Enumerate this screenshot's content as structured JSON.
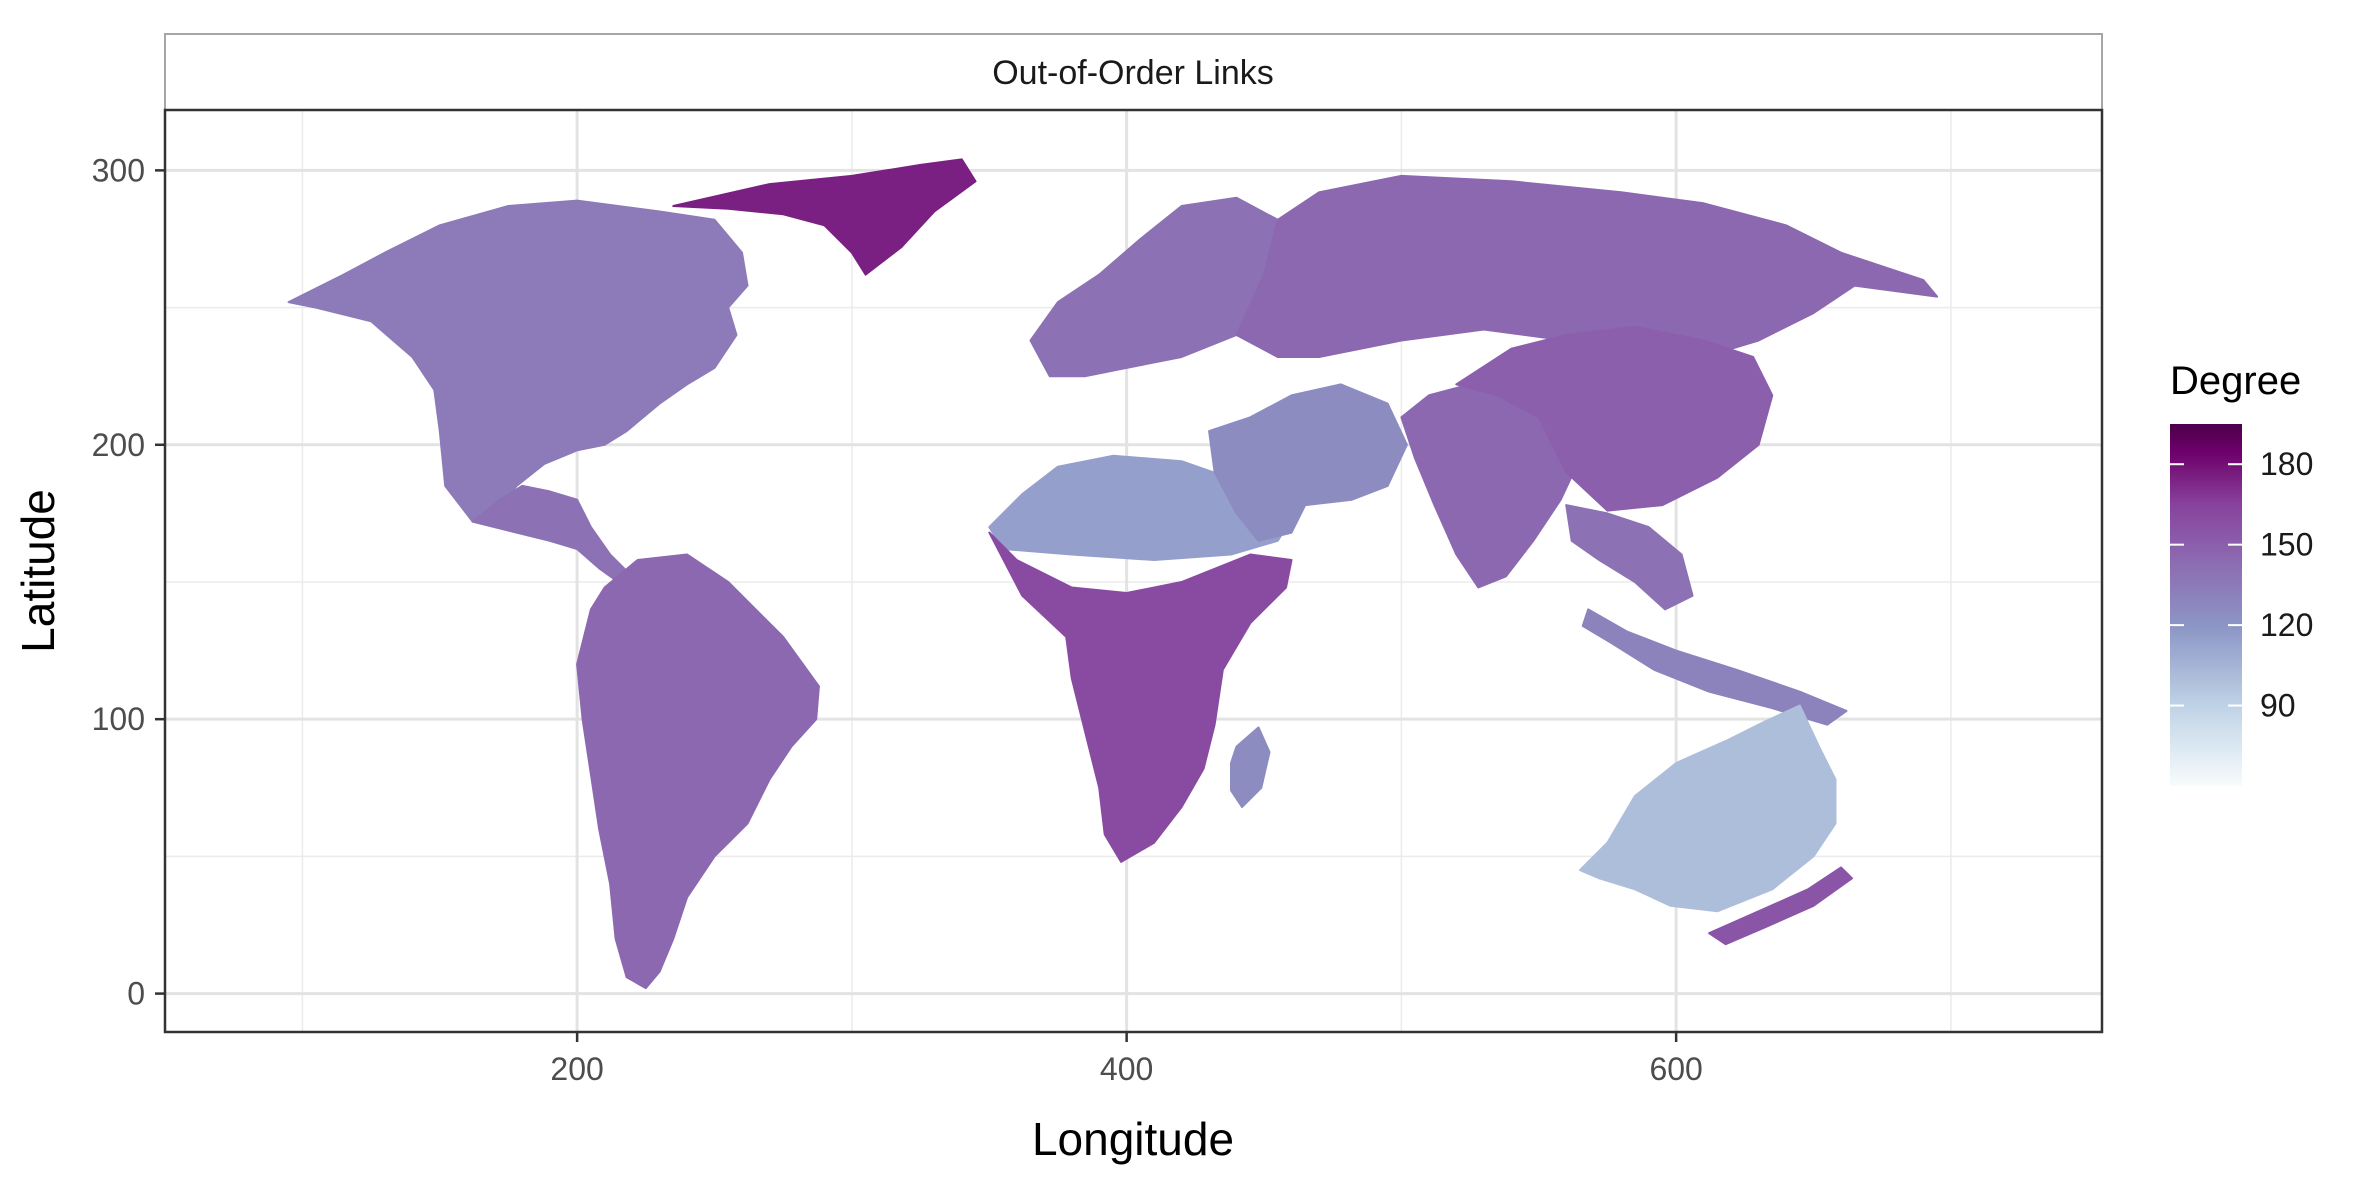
{
  "chart_data": {
    "type": "heatmap",
    "panel_title": "Out-of-Order Links",
    "xlabel": "Longitude",
    "ylabel": "Latitude",
    "xlim": [
      50,
      755
    ],
    "ylim": [
      -14,
      322
    ],
    "x_ticks": [
      200,
      400,
      600
    ],
    "y_ticks": [
      0,
      100,
      200,
      300
    ],
    "x_tick_labels": [
      "200",
      "400",
      "600"
    ],
    "y_tick_labels": [
      "0",
      "100",
      "200",
      "300"
    ],
    "grid": true,
    "legend": {
      "title": "Degree",
      "position": "right",
      "range": [
        60,
        195
      ],
      "breaks": [
        90,
        120,
        150,
        180
      ],
      "break_labels": [
        "90",
        "120",
        "150",
        "180"
      ],
      "colors": [
        "#f7fcfd",
        "#bfd3e6",
        "#8c96c6",
        "#8c6bb1",
        "#88419d",
        "#6e016b",
        "#4d004b"
      ]
    },
    "regions": [
      {
        "name": "North America",
        "value": 135
      },
      {
        "name": "Greenland",
        "value": 175
      },
      {
        "name": "Central America",
        "value": 140
      },
      {
        "name": "South America",
        "value": 145
      },
      {
        "name": "Sahara",
        "value": 115
      },
      {
        "name": "Sub-Saharan Africa",
        "value": 160
      },
      {
        "name": "Madagascar",
        "value": 125
      },
      {
        "name": "Europe",
        "value": 140
      },
      {
        "name": "Russia",
        "value": 145
      },
      {
        "name": "Middle East",
        "value": 125
      },
      {
        "name": "India",
        "value": 145
      },
      {
        "name": "China",
        "value": 150
      },
      {
        "name": "Southeast Asia",
        "value": 140
      },
      {
        "name": "Indonesia",
        "value": 130
      },
      {
        "name": "Australia",
        "value": 100
      },
      {
        "name": "New Zealand",
        "value": 155
      }
    ]
  }
}
